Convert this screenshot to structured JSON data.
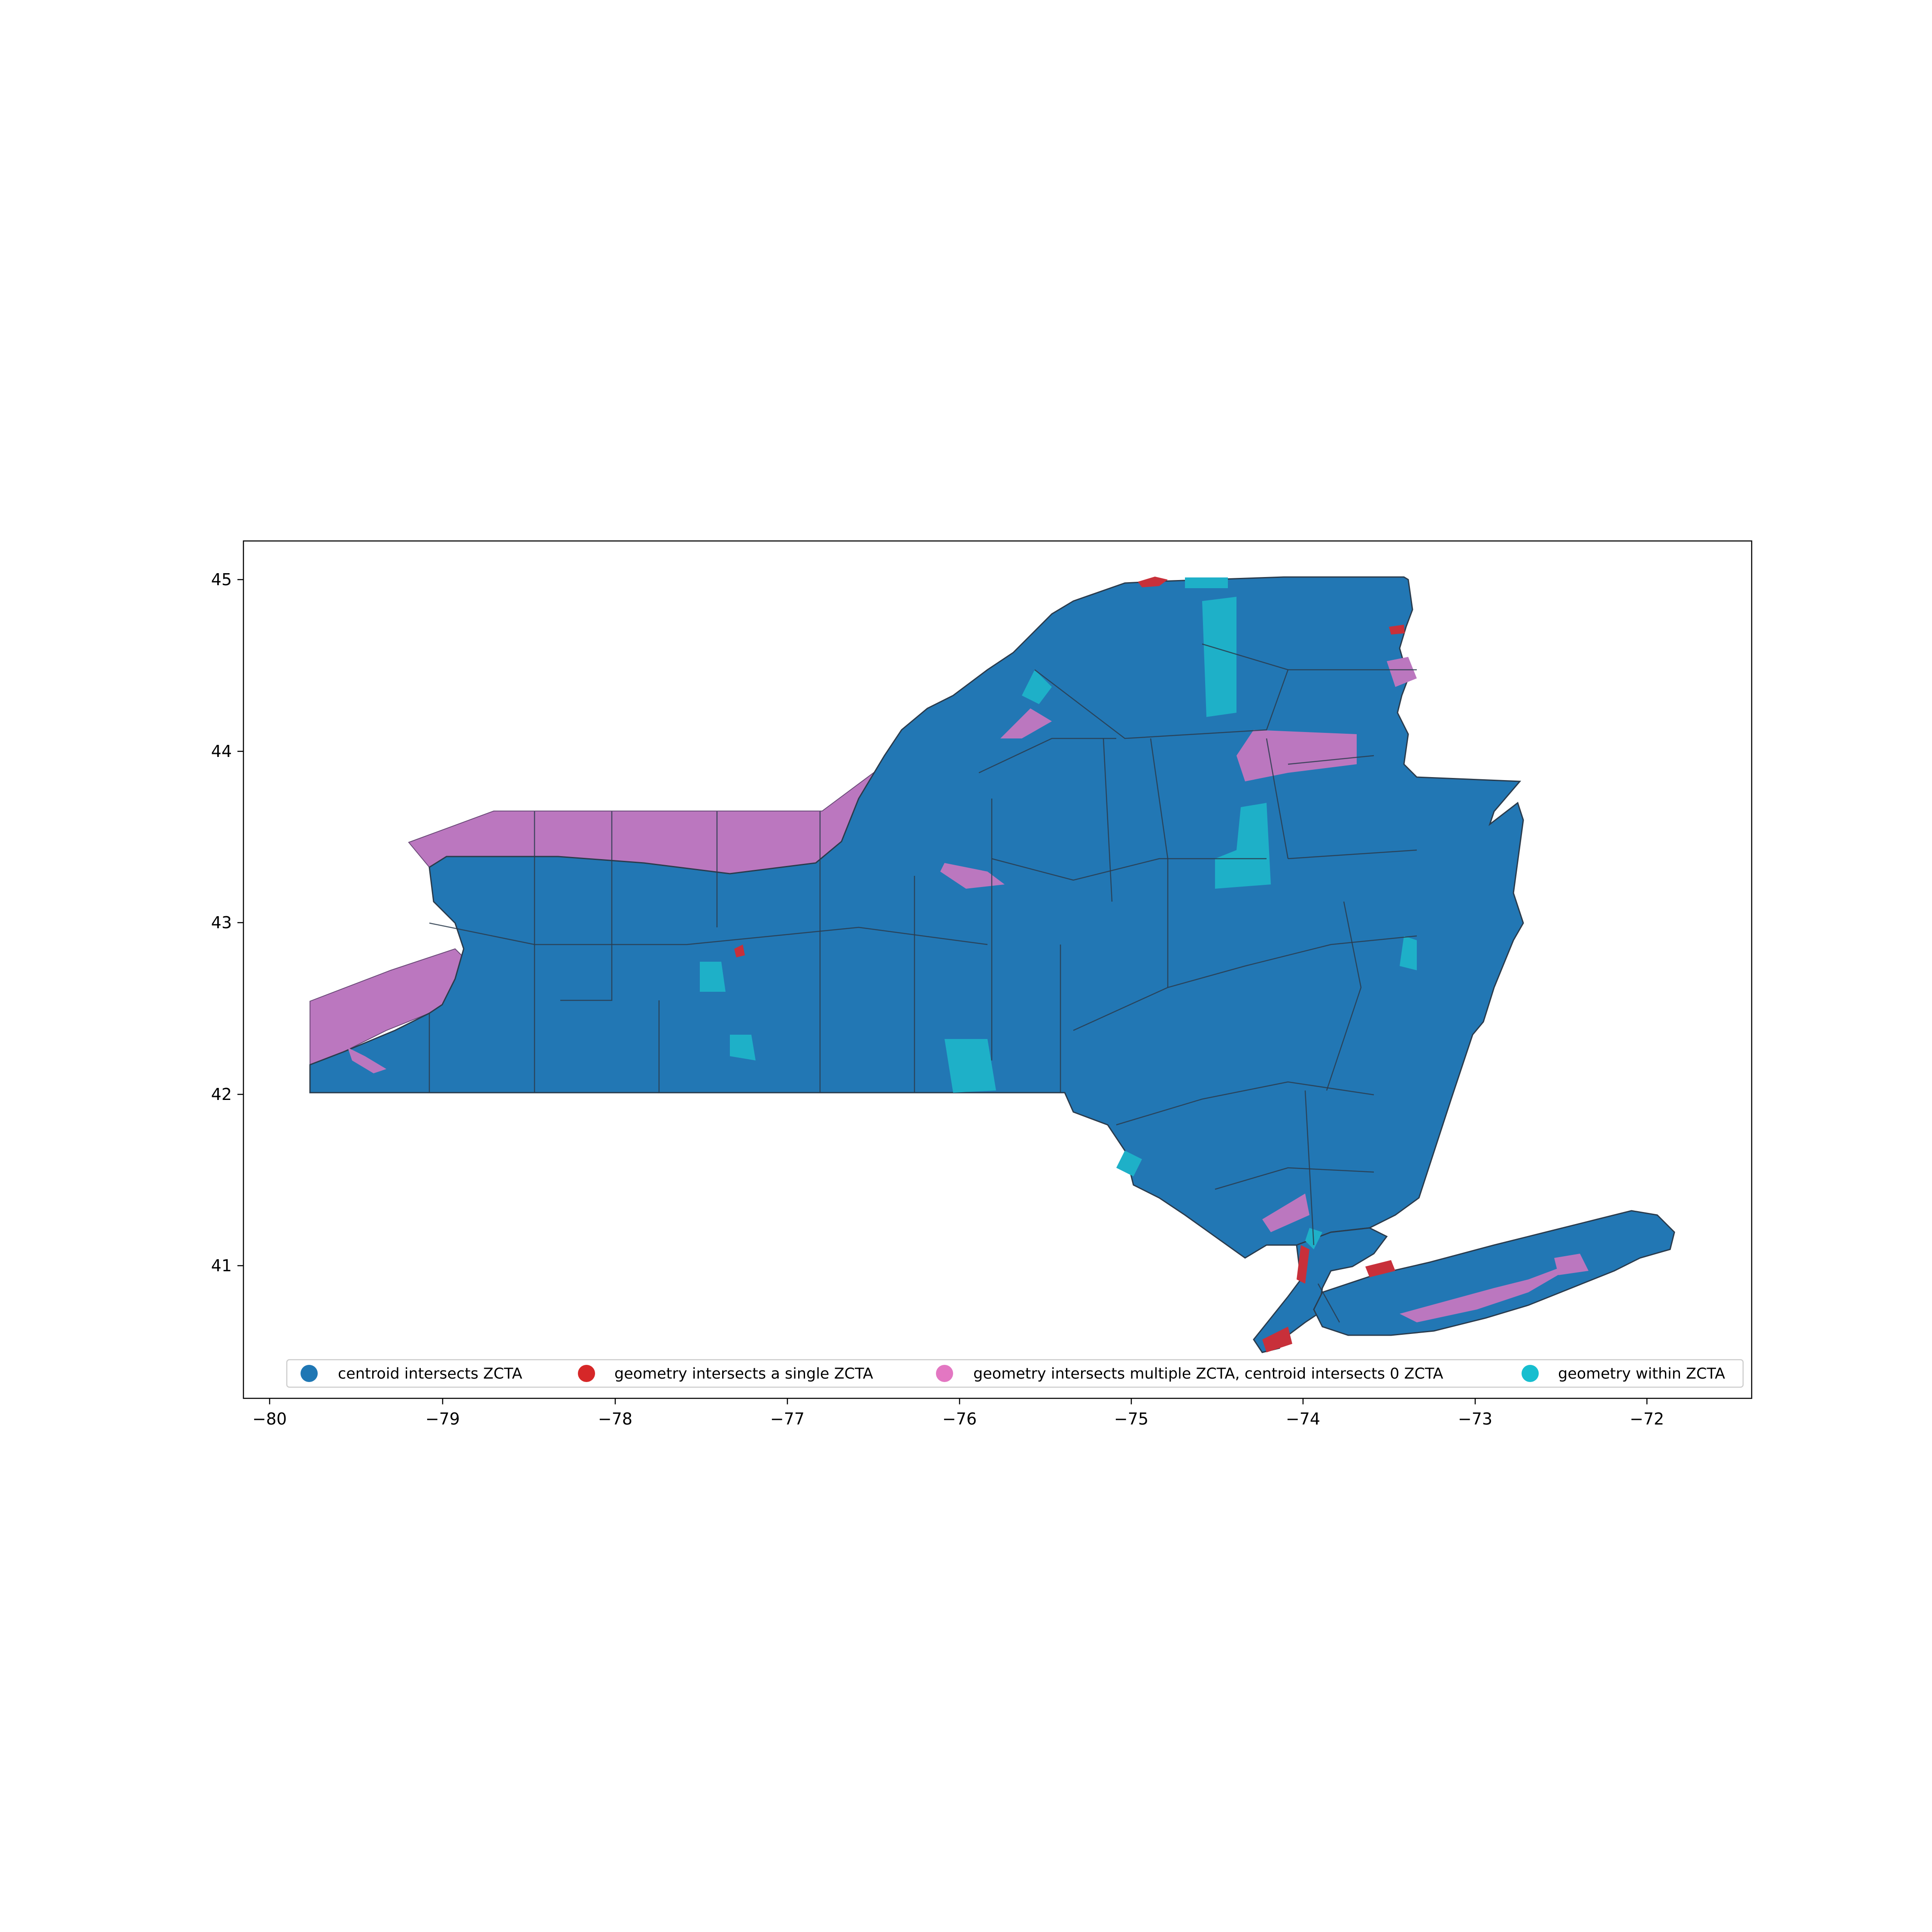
{
  "map": {
    "x_ticks": [
      "−80",
      "−79",
      "−78",
      "−77",
      "−76",
      "−75",
      "−74",
      "−73",
      "−72"
    ],
    "y_ticks": [
      "45",
      "44",
      "43",
      "42",
      "41"
    ],
    "xlim": [
      -80.15,
      -71.4
    ],
    "ylim": [
      40.25,
      45.25
    ],
    "legend": {
      "placement": "lower-center",
      "columns": 4,
      "entries": [
        {
          "label": "centroid intersects ZCTA",
          "color": "#1f77b4"
        },
        {
          "label": "geometry intersects a single ZCTA",
          "color": "#d62728"
        },
        {
          "label": "geometry intersects multiple ZCTA, centroid intersects 0 ZCTA",
          "color": "#e377c2"
        },
        {
          "label": "geometry within ZCTA",
          "color": "#17becf"
        }
      ]
    },
    "colors": {
      "centroid": "#2277b4",
      "single": "#c8303a",
      "multiple": "#bb77bf",
      "within": "#1eb0c8",
      "border": "#2a3b4c"
    }
  }
}
